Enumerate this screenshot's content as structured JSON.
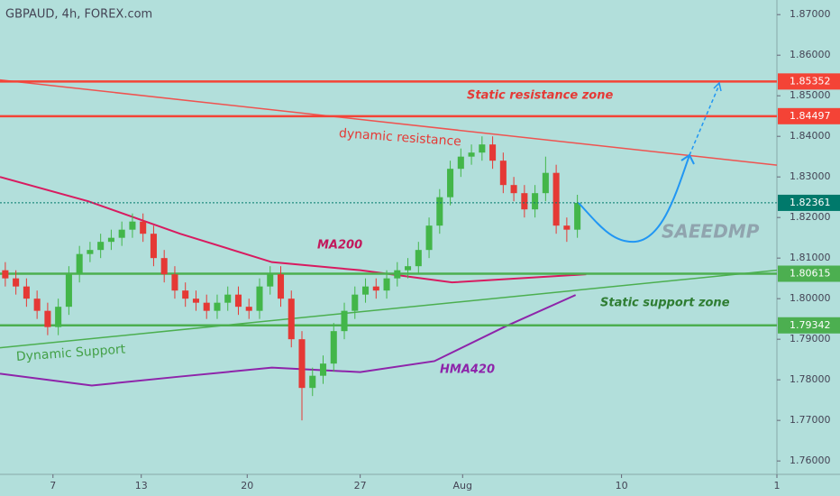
{
  "chart_data": {
    "type": "candlestick",
    "title": "GBPAUD, 4h, FOREX.com",
    "xlim": [
      0,
      220
    ],
    "xticks": [
      {
        "value": 15,
        "label": "7"
      },
      {
        "value": 40,
        "label": "13"
      },
      {
        "value": 70,
        "label": "20"
      },
      {
        "value": 102,
        "label": "27"
      },
      {
        "value": 131,
        "label": "Aug"
      },
      {
        "value": 176,
        "label": "10"
      },
      {
        "value": 220,
        "label": "1"
      }
    ],
    "ylim": [
      1.7567,
      1.8736
    ],
    "yticks": [
      {
        "value": 1.87,
        "label": "1.87000"
      },
      {
        "value": 1.86,
        "label": "1.86000"
      },
      {
        "value": 1.85,
        "label": "1.85000"
      },
      {
        "value": 1.84,
        "label": "1.84000"
      },
      {
        "value": 1.83,
        "label": "1.83000"
      },
      {
        "value": 1.82,
        "label": "1.82000"
      },
      {
        "value": 1.81,
        "label": "1.81000"
      },
      {
        "value": 1.8,
        "label": "1.80000"
      },
      {
        "value": 1.79,
        "label": "1.79000"
      },
      {
        "value": 1.78,
        "label": "1.78000"
      },
      {
        "value": 1.77,
        "label": "1.77000"
      },
      {
        "value": 1.76,
        "label": "1.76000"
      }
    ],
    "up_color": "#43b649",
    "down_color": "#e53935",
    "candles": {
      "x": [
        1.5,
        4.5,
        7.5,
        10.5,
        13.5,
        16.5,
        19.5,
        22.5,
        25.5,
        28.5,
        31.5,
        34.5,
        37.5,
        40.5,
        43.5,
        46.5,
        49.5,
        52.5,
        55.5,
        58.5,
        61.5,
        64.5,
        67.5,
        70.5,
        73.5,
        76.5,
        79.5,
        82.5,
        85.5,
        88.5,
        91.5,
        94.5,
        97.5,
        100.5,
        103.5,
        106.5,
        109.5,
        112.5,
        115.5,
        118.5,
        121.5,
        124.5,
        127.5,
        130.5,
        133.5,
        136.5,
        139.5,
        142.5,
        145.5,
        148.5,
        151.5,
        154.5,
        157.5,
        160.5,
        163.5
      ],
      "open": [
        1.807,
        1.805,
        1.803,
        1.8,
        1.797,
        1.793,
        1.798,
        1.806,
        1.811,
        1.812,
        1.814,
        1.815,
        1.817,
        1.819,
        1.816,
        1.81,
        1.806,
        1.802,
        1.8,
        1.799,
        1.797,
        1.799,
        1.801,
        1.798,
        1.797,
        1.803,
        1.806,
        1.8,
        1.79,
        1.778,
        1.781,
        1.784,
        1.792,
        1.797,
        1.801,
        1.803,
        1.802,
        1.805,
        1.807,
        1.808,
        1.812,
        1.818,
        1.825,
        1.832,
        1.835,
        1.836,
        1.838,
        1.834,
        1.828,
        1.826,
        1.822,
        1.826,
        1.831,
        1.818,
        1.817
      ],
      "high": [
        1.809,
        1.807,
        1.805,
        1.802,
        1.799,
        1.8,
        1.808,
        1.813,
        1.814,
        1.816,
        1.817,
        1.819,
        1.821,
        1.821,
        1.818,
        1.812,
        1.808,
        1.804,
        1.802,
        1.801,
        1.801,
        1.803,
        1.803,
        1.8,
        1.805,
        1.808,
        1.808,
        1.802,
        1.792,
        1.783,
        1.786,
        1.794,
        1.799,
        1.803,
        1.805,
        1.805,
        1.807,
        1.809,
        1.81,
        1.814,
        1.82,
        1.827,
        1.834,
        1.837,
        1.838,
        1.84,
        1.84,
        1.836,
        1.83,
        1.828,
        1.828,
        1.835,
        1.833,
        1.82,
        1.8256
      ],
      "low": [
        1.803,
        1.801,
        1.798,
        1.795,
        1.791,
        1.791,
        1.796,
        1.804,
        1.809,
        1.81,
        1.812,
        1.813,
        1.815,
        1.814,
        1.808,
        1.804,
        1.8,
        1.798,
        1.797,
        1.795,
        1.795,
        1.797,
        1.796,
        1.795,
        1.795,
        1.801,
        1.798,
        1.788,
        1.77,
        1.776,
        1.779,
        1.782,
        1.79,
        1.795,
        1.799,
        1.8,
        1.8,
        1.803,
        1.805,
        1.806,
        1.81,
        1.816,
        1.823,
        1.83,
        1.833,
        1.834,
        1.832,
        1.826,
        1.824,
        1.82,
        1.82,
        1.824,
        1.816,
        1.814,
        1.815
      ],
      "close": [
        1.805,
        1.803,
        1.8,
        1.797,
        1.793,
        1.798,
        1.806,
        1.811,
        1.812,
        1.814,
        1.815,
        1.817,
        1.819,
        1.816,
        1.81,
        1.806,
        1.802,
        1.8,
        1.799,
        1.797,
        1.799,
        1.801,
        1.798,
        1.797,
        1.803,
        1.806,
        1.8,
        1.79,
        1.778,
        1.781,
        1.784,
        1.792,
        1.797,
        1.801,
        1.803,
        1.802,
        1.805,
        1.807,
        1.808,
        1.812,
        1.818,
        1.825,
        1.832,
        1.835,
        1.836,
        1.838,
        1.834,
        1.828,
        1.826,
        1.822,
        1.826,
        1.831,
        1.818,
        1.817,
        1.8236
      ]
    },
    "series": [
      {
        "name": "MA200",
        "color": "#d81b60",
        "x": [
          0,
          25,
          51,
          77,
          102,
          128,
          166
        ],
        "values": [
          1.83,
          1.824,
          1.816,
          1.809,
          1.807,
          1.804,
          1.806
        ]
      },
      {
        "name": "HMA420",
        "color": "#8e24aa",
        "x": [
          0,
          26,
          51,
          77,
          102,
          123,
          143,
          163
        ],
        "values": [
          1.7815,
          1.7786,
          1.7808,
          1.783,
          1.7819,
          1.7846,
          1.7931,
          1.8009
        ]
      }
    ],
    "trendlines": [
      {
        "name": "dynamic resistance",
        "color": "#ef5350",
        "x": [
          0,
          220
        ],
        "values": [
          1.8539,
          1.8329
        ]
      },
      {
        "name": "Dynamic Support",
        "color": "#4caf50",
        "x": [
          0,
          220
        ],
        "values": [
          1.7879,
          1.807
        ]
      }
    ],
    "levels": [
      {
        "value": 1.85352,
        "color": "#f44336"
      },
      {
        "value": 1.84497,
        "color": "#f44336"
      },
      {
        "value": 1.80615,
        "color": "#4caf50"
      },
      {
        "value": 1.79342,
        "color": "#4caf50"
      }
    ],
    "last_price": {
      "value": 1.82361,
      "color": "#00796b"
    },
    "annotations": {
      "resistance_zone": "Static resistance zone",
      "support_zone": "Static support zone",
      "watermark": "SAEEDMP"
    }
  }
}
